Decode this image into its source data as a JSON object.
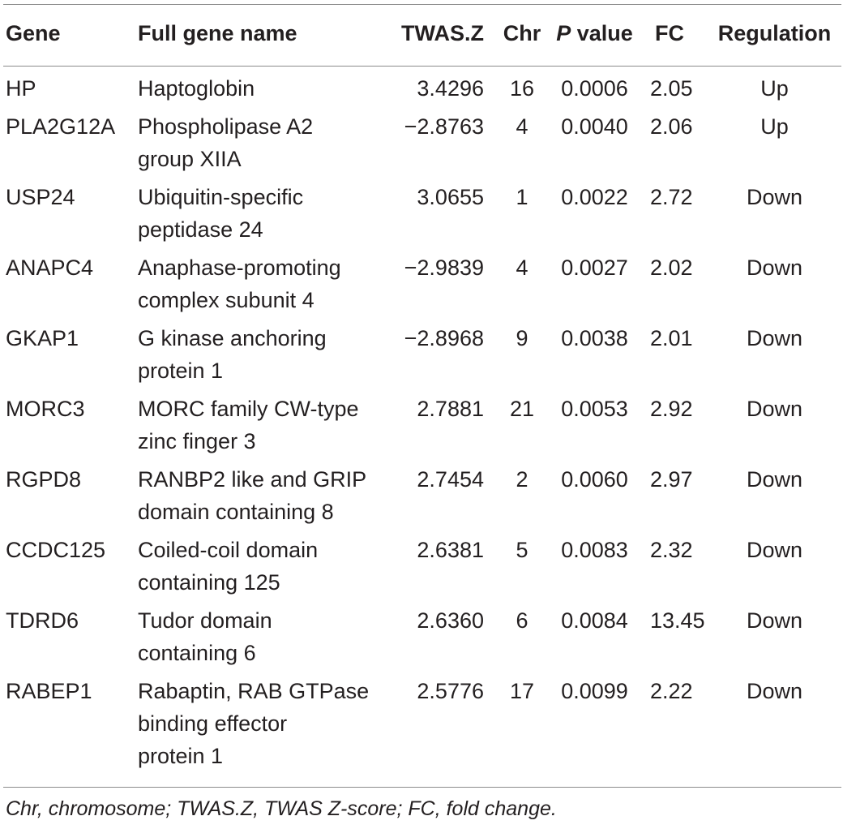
{
  "table": {
    "headers": {
      "gene": "Gene",
      "full_name": "Full gene name",
      "twas": "TWAS.Z",
      "chr": "Chr",
      "p_italic": "P",
      "p_rest": " value",
      "fc": "FC",
      "regulation": "Regulation"
    },
    "rows": [
      {
        "gene": "HP",
        "name_lines": [
          "Haptoglobin"
        ],
        "twas": "3.4296",
        "chr": "16",
        "p": "0.0006",
        "fc": "2.05",
        "reg": "Up"
      },
      {
        "gene": "PLA2G12A",
        "name_lines": [
          "Phospholipase A2",
          "group XIIA"
        ],
        "twas": "−2.8763",
        "chr": "4",
        "p": "0.0040",
        "fc": "2.06",
        "reg": "Up"
      },
      {
        "gene": "USP24",
        "name_lines": [
          "Ubiquitin-specific",
          "peptidase 24"
        ],
        "twas": "3.0655",
        "chr": "1",
        "p": "0.0022",
        "fc": "2.72",
        "reg": "Down"
      },
      {
        "gene": "ANAPC4",
        "name_lines": [
          "Anaphase-promoting",
          "complex subunit 4"
        ],
        "twas": "−2.9839",
        "chr": "4",
        "p": "0.0027",
        "fc": "2.02",
        "reg": "Down"
      },
      {
        "gene": "GKAP1",
        "name_lines": [
          "G kinase anchoring",
          "protein 1"
        ],
        "twas": "−2.8968",
        "chr": "9",
        "p": "0.0038",
        "fc": "2.01",
        "reg": "Down"
      },
      {
        "gene": "MORC3",
        "name_lines": [
          "MORC family CW-type",
          "zinc finger 3"
        ],
        "twas": "2.7881",
        "chr": "21",
        "p": "0.0053",
        "fc": "2.92",
        "reg": "Down"
      },
      {
        "gene": "RGPD8",
        "name_lines": [
          "RANBP2 like and GRIP",
          "domain containing 8"
        ],
        "twas": "2.7454",
        "chr": "2",
        "p": "0.0060",
        "fc": "2.97",
        "reg": "Down"
      },
      {
        "gene": "CCDC125",
        "name_lines": [
          "Coiled-coil domain",
          "containing 125"
        ],
        "twas": "2.6381",
        "chr": "5",
        "p": "0.0083",
        "fc": "2.32",
        "reg": "Down"
      },
      {
        "gene": "TDRD6",
        "name_lines": [
          "Tudor domain",
          "containing 6"
        ],
        "twas": "2.6360",
        "chr": "6",
        "p": "0.0084",
        "fc": "13.45",
        "reg": "Down"
      },
      {
        "gene": "RABEP1",
        "name_lines": [
          "Rabaptin, RAB GTPase",
          "binding effector",
          "protein 1"
        ],
        "twas": "2.5776",
        "chr": "17",
        "p": "0.0099",
        "fc": "2.22",
        "reg": "Down"
      }
    ],
    "footnote": "Chr, chromosome; TWAS.Z, TWAS Z-score; FC, fold change."
  }
}
